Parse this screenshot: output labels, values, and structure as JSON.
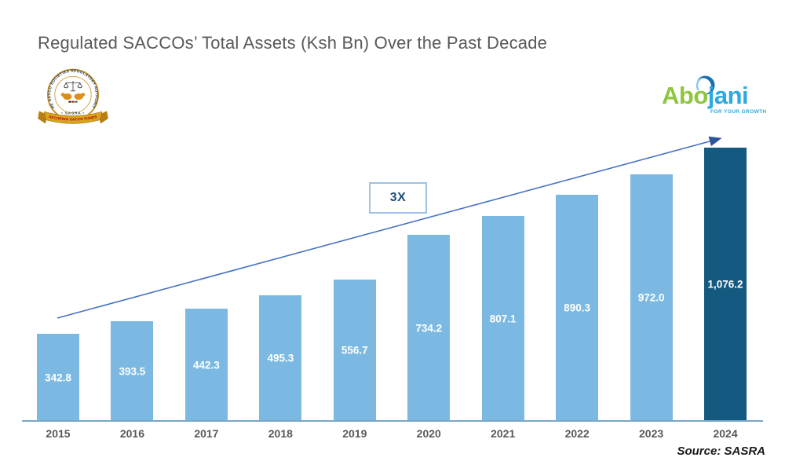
{
  "title": "Regulated SACCOs’ Total Assets (Ksh Bn) Over the Past Decade",
  "source_note": "Source: SASRA",
  "annotation": {
    "label": "3X"
  },
  "logos": {
    "sasra": {
      "ring_text": "THE SACCO SOCIETIES REGULATORY AUTHORITY",
      "name": "• SASRA •",
      "ribbon_text": "SECURING SACCO FUNDS"
    },
    "abojani": {
      "part1": "Abo",
      "part2": "jani",
      "tagline": "FOR YOUR GROWTH"
    }
  },
  "chart_data": {
    "type": "bar",
    "title": "Regulated SACCOs’ Total Assets (Ksh Bn) Over the Past Decade",
    "categories": [
      "2015",
      "2016",
      "2017",
      "2018",
      "2019",
      "2020",
      "2021",
      "2022",
      "2023",
      "2024"
    ],
    "values": [
      342.8,
      393.5,
      442.3,
      495.3,
      556.7,
      734.2,
      807.1,
      890.3,
      972.0,
      1076.2
    ],
    "value_labels": [
      "342.8",
      "393.5",
      "442.3",
      "495.3",
      "556.7",
      "734.2",
      "807.1",
      "890.3",
      "972.0",
      "1,076.2"
    ],
    "xlabel": "",
    "ylabel": "Total Assets (Ksh Bn)",
    "ylim": [
      0,
      1100
    ],
    "grid": false,
    "legend": "none",
    "annotation": "3X growth arrow from 2015 to 2024",
    "highlight_index": 9,
    "bar_color": "#7CB9E2",
    "highlight_color": "#14597F"
  },
  "colors": {
    "title_gray": "#595959",
    "axis_blue": "#79A7C7",
    "arrow_blue": "#4472C4",
    "badge_border": "#9DC3E6",
    "badge_text": "#1F4E79",
    "abojani_green": "#8DC63F",
    "abojani_blue": "#2BA9E0",
    "sasra_gold": "#C9921E",
    "sasra_navy": "#1F3864",
    "sasra_red": "#B00000"
  }
}
